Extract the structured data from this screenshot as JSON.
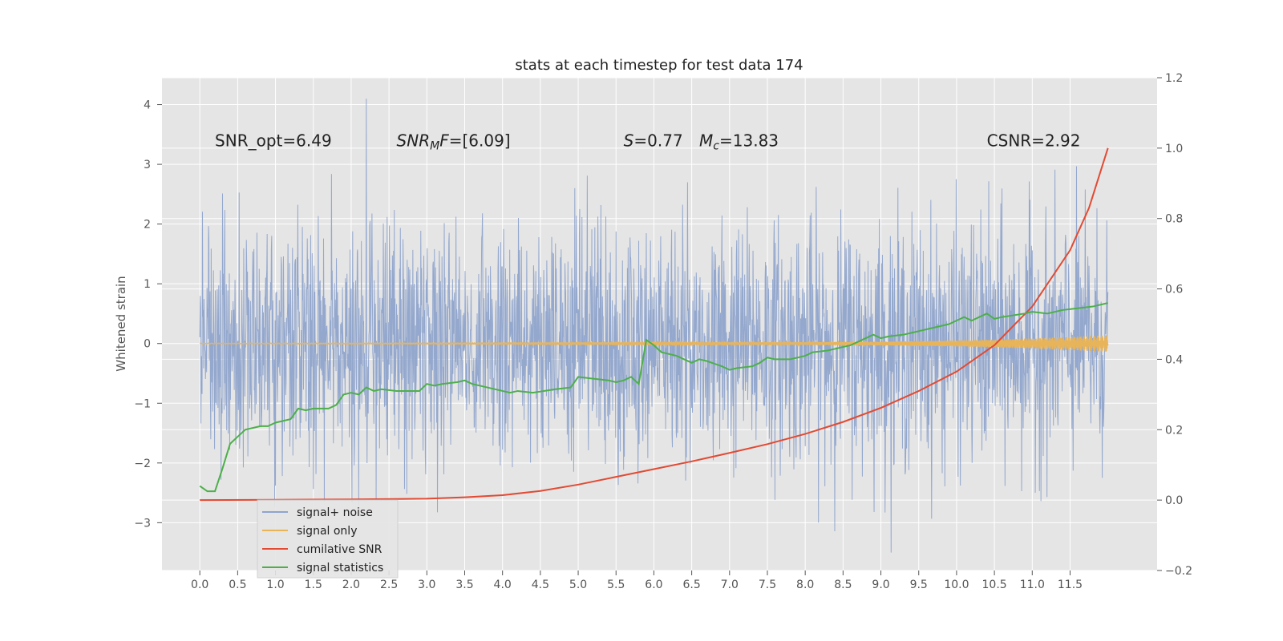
{
  "chart_data": {
    "type": "line",
    "title": "stats at each timestep for test data 174",
    "ylabel": "Whitened strain",
    "xlabel": "",
    "xlim": [
      -0.5,
      12.65
    ],
    "ylim": [
      -3.8,
      4.45
    ],
    "y2lim": [
      -0.2,
      1.2
    ],
    "x_ticks": [
      "0.0",
      "0.5",
      "1.0",
      "1.5",
      "2.0",
      "2.5",
      "3.0",
      "3.5",
      "4.0",
      "4.5",
      "5.0",
      "5.5",
      "6.0",
      "6.5",
      "7.0",
      "7.5",
      "8.0",
      "8.5",
      "9.0",
      "9.5",
      "10.0",
      "10.5",
      "11.0",
      "11.5"
    ],
    "y_ticks": [
      "−3",
      "−2",
      "−1",
      "0",
      "1",
      "2",
      "3",
      "4"
    ],
    "y2_ticks": [
      "−0.2",
      "0.0",
      "0.2",
      "0.4",
      "0.6",
      "0.8",
      "1.0",
      "1.2"
    ],
    "grid": true,
    "legend_position": "lower-left",
    "annotations": [
      {
        "id": "snr-opt",
        "prefix": "SNR_opt=",
        "value": "6.49",
        "x": 0.2,
        "y": 3.3
      },
      {
        "id": "snr-mf",
        "prefix_italic": "SNR",
        "sub": "M",
        "suffix_italic": "F",
        "suffix": "=[6.09]",
        "x": 2.6,
        "y": 3.3
      },
      {
        "id": "s",
        "prefix_italic": "S",
        "suffix": "=0.77",
        "x": 5.6,
        "y": 3.3
      },
      {
        "id": "mc",
        "prefix_italic": "M",
        "sub": "c",
        "suffix": "=13.83",
        "x": 6.6,
        "y": 3.3
      },
      {
        "id": "csnr",
        "prefix": "CSNR=",
        "value": "2.92",
        "x": 10.4,
        "y": 3.3
      }
    ],
    "series": [
      {
        "name": "signal+ noise",
        "axis": "left",
        "color": "#8fa4cc",
        "x_start": 0.0,
        "x_end": 12.0,
        "noise_sigma": 1.0,
        "peak": 4.1
      },
      {
        "name": "signal only",
        "axis": "left",
        "color": "#e8b45a",
        "x": [
          0,
          1,
          2,
          3,
          4,
          5,
          6,
          7,
          8,
          9,
          9.5,
          10,
          10.5,
          11,
          11.5,
          12
        ],
        "amplitude": [
          0.005,
          0.006,
          0.007,
          0.008,
          0.01,
          0.012,
          0.015,
          0.018,
          0.022,
          0.03,
          0.04,
          0.05,
          0.065,
          0.085,
          0.11,
          0.14
        ]
      },
      {
        "name": "cumilative SNR",
        "axis": "right",
        "color": "#e24a33",
        "x": [
          0,
          1,
          2,
          3,
          3.5,
          4,
          4.5,
          5,
          5.5,
          6,
          6.5,
          7,
          7.5,
          8,
          8.5,
          9,
          9.5,
          10,
          10.5,
          11,
          11.5,
          11.75,
          12
        ],
        "values": [
          0.0,
          0.001,
          0.002,
          0.004,
          0.008,
          0.014,
          0.026,
          0.044,
          0.066,
          0.088,
          0.11,
          0.134,
          0.159,
          0.188,
          0.222,
          0.262,
          0.31,
          0.365,
          0.44,
          0.55,
          0.71,
          0.83,
          1.0
        ]
      },
      {
        "name": "signal statistics",
        "axis": "right",
        "color": "#4daf4a",
        "x": [
          0,
          0.1,
          0.2,
          0.3,
          0.4,
          0.5,
          0.6,
          0.8,
          0.9,
          1.0,
          1.2,
          1.3,
          1.4,
          1.5,
          1.7,
          1.8,
          1.9,
          2.0,
          2.1,
          2.2,
          2.3,
          2.4,
          2.6,
          2.9,
          3.0,
          3.1,
          3.2,
          3.4,
          3.5,
          3.6,
          3.8,
          4.0,
          4.1,
          4.2,
          4.4,
          4.7,
          4.9,
          5.0,
          5.2,
          5.4,
          5.5,
          5.6,
          5.7,
          5.8,
          5.9,
          6.0,
          6.1,
          6.3,
          6.5,
          6.6,
          6.7,
          6.9,
          7.0,
          7.1,
          7.3,
          7.4,
          7.5,
          7.6,
          7.8,
          8.0,
          8.1,
          8.3,
          8.6,
          8.8,
          8.9,
          9.0,
          9.1,
          9.3,
          9.5,
          9.7,
          9.9,
          10.0,
          10.1,
          10.2,
          10.3,
          10.4,
          10.5,
          10.6,
          10.9,
          11.0,
          11.2,
          11.4,
          11.6,
          11.8,
          12.0
        ],
        "values": [
          0.04,
          0.025,
          0.025,
          0.09,
          0.16,
          0.18,
          0.2,
          0.21,
          0.21,
          0.22,
          0.23,
          0.26,
          0.255,
          0.26,
          0.26,
          0.27,
          0.3,
          0.305,
          0.3,
          0.32,
          0.31,
          0.315,
          0.31,
          0.31,
          0.33,
          0.325,
          0.33,
          0.335,
          0.34,
          0.33,
          0.32,
          0.31,
          0.305,
          0.31,
          0.305,
          0.315,
          0.32,
          0.35,
          0.345,
          0.34,
          0.335,
          0.34,
          0.35,
          0.33,
          0.455,
          0.44,
          0.42,
          0.41,
          0.39,
          0.4,
          0.395,
          0.38,
          0.37,
          0.375,
          0.38,
          0.39,
          0.405,
          0.4,
          0.4,
          0.41,
          0.42,
          0.425,
          0.44,
          0.46,
          0.47,
          0.46,
          0.465,
          0.47,
          0.48,
          0.49,
          0.5,
          0.51,
          0.52,
          0.51,
          0.52,
          0.53,
          0.515,
          0.52,
          0.53,
          0.535,
          0.53,
          0.54,
          0.545,
          0.55,
          0.56
        ]
      }
    ]
  }
}
